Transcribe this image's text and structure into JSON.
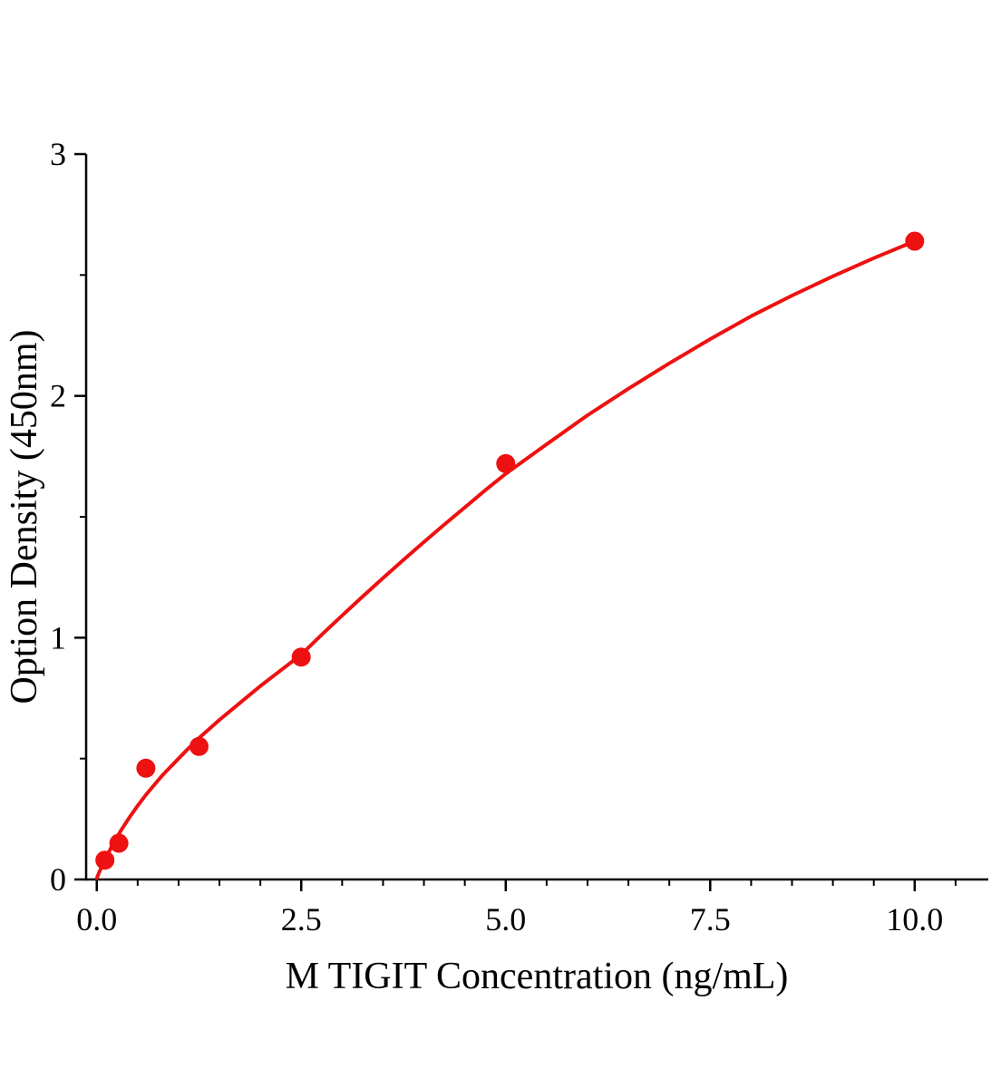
{
  "figure": {
    "background": "#ffffff"
  },
  "chart_data": {
    "type": "scatter",
    "title": "",
    "xlabel": "M TIGIT Concentration (ng/mL)",
    "ylabel": "Option Density (450nm)",
    "legend": null,
    "grid": false,
    "x_range": [
      -0.13,
      10.9
    ],
    "y_range": [
      0,
      3
    ],
    "x_ticks": [
      {
        "value": 0.0,
        "label": "0.0"
      },
      {
        "value": 2.5,
        "label": "2.5"
      },
      {
        "value": 5.0,
        "label": "5.0"
      },
      {
        "value": 7.5,
        "label": "7.5"
      },
      {
        "value": 10.0,
        "label": "10.0"
      }
    ],
    "y_ticks": [
      {
        "value": 0,
        "label": "0"
      },
      {
        "value": 1,
        "label": "1"
      },
      {
        "value": 2,
        "label": "2"
      },
      {
        "value": 3,
        "label": "3"
      }
    ],
    "x_minor_ticks": [
      0.5,
      1.0,
      1.5,
      2.0,
      3.0,
      3.5,
      4.0,
      4.5,
      5.5,
      6.0,
      6.5,
      7.0,
      8.0,
      8.5,
      9.0,
      9.5,
      10.5
    ],
    "y_minor_ticks": [
      0.5,
      1.5,
      2.5
    ],
    "series_color": "#ee1111",
    "axis_color": "#000000",
    "marker_radius": 10.5,
    "points": [
      [
        0.1,
        0.08
      ],
      [
        0.27,
        0.15
      ],
      [
        0.6,
        0.46
      ],
      [
        1.25,
        0.55
      ],
      [
        2.5,
        0.92
      ],
      [
        5.0,
        1.72
      ],
      [
        10.0,
        2.64
      ]
    ],
    "curve": [
      [
        0.0,
        0.005
      ],
      [
        0.05,
        0.045
      ],
      [
        0.1,
        0.082
      ],
      [
        0.15,
        0.115
      ],
      [
        0.2,
        0.147
      ],
      [
        0.3,
        0.205
      ],
      [
        0.4,
        0.257
      ],
      [
        0.5,
        0.305
      ],
      [
        0.6,
        0.35
      ],
      [
        0.7,
        0.39
      ],
      [
        0.8,
        0.43
      ],
      [
        0.9,
        0.465
      ],
      [
        1.0,
        0.5
      ],
      [
        1.1,
        0.535
      ],
      [
        1.25,
        0.585
      ],
      [
        1.5,
        0.66
      ],
      [
        1.75,
        0.73
      ],
      [
        2.0,
        0.8
      ],
      [
        2.25,
        0.865
      ],
      [
        2.5,
        0.93
      ],
      [
        2.75,
        1.012
      ],
      [
        3.0,
        1.092
      ],
      [
        3.25,
        1.17
      ],
      [
        3.5,
        1.247
      ],
      [
        3.75,
        1.322
      ],
      [
        4.0,
        1.396
      ],
      [
        4.25,
        1.468
      ],
      [
        4.5,
        1.539
      ],
      [
        4.75,
        1.61
      ],
      [
        5.0,
        1.678
      ],
      [
        5.5,
        1.8
      ],
      [
        6.0,
        1.92
      ],
      [
        6.5,
        2.03
      ],
      [
        7.0,
        2.135
      ],
      [
        7.5,
        2.235
      ],
      [
        8.0,
        2.33
      ],
      [
        8.5,
        2.415
      ],
      [
        9.0,
        2.495
      ],
      [
        9.5,
        2.57
      ],
      [
        10.0,
        2.64
      ]
    ]
  }
}
